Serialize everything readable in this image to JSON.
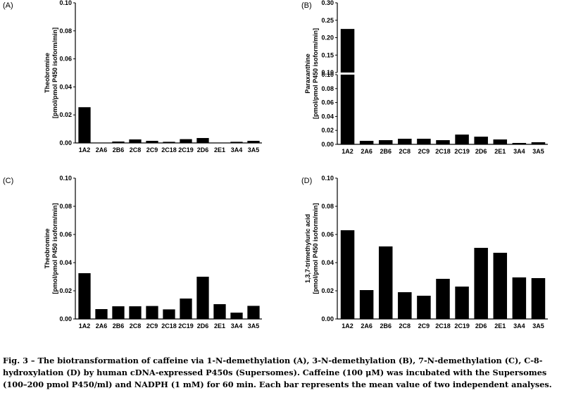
{
  "chart_data": [
    {
      "type": "bar",
      "panel": "(A)",
      "ylabel_lines": [
        "Theobromine",
        "[pmol/pmol P450 isoform/min]"
      ],
      "categories": [
        "1A2",
        "2A6",
        "2B6",
        "2C8",
        "2C9",
        "2C18",
        "2C19",
        "2D6",
        "2E1",
        "3A4",
        "3A5"
      ],
      "values": [
        0.0255,
        0.0,
        0.001,
        0.0025,
        0.0015,
        0.0008,
        0.0027,
        0.0035,
        0.0,
        0.0008,
        0.0015
      ],
      "ylim": [
        0,
        0.1
      ],
      "yticks": [
        "0.00",
        "0.02",
        "0.04",
        "0.06",
        "0.08",
        "0.10"
      ]
    },
    {
      "type": "bar",
      "panel": "(B)",
      "ylabel_lines": [
        "Paraxanthine",
        "[pmol/pmol P450 isoform/min]"
      ],
      "categories": [
        "1A2",
        "2A6",
        "2B6",
        "2C8",
        "2C9",
        "2C18",
        "2C19",
        "2D6",
        "2E1",
        "3A4",
        "3A5"
      ],
      "values": [
        0.225,
        0.005,
        0.006,
        0.008,
        0.008,
        0.006,
        0.014,
        0.011,
        0.007,
        0.002,
        0.003
      ],
      "ylim": [
        0,
        0.3
      ],
      "axis_break": [
        0.1,
        0.1
      ],
      "yticks_lower": [
        "0.00",
        "0.02",
        "0.04",
        "0.06",
        "0.08",
        "0.10"
      ],
      "yticks_upper": [
        "0.10",
        "0.15",
        "0.20",
        "0.25",
        "0.30"
      ]
    },
    {
      "type": "bar",
      "panel": "(C)",
      "ylabel_lines": [
        "Theobromine",
        "[pmol/pmol P450 isoform/min]"
      ],
      "categories": [
        "1A2",
        "2A6",
        "2B6",
        "2C8",
        "2C9",
        "2C18",
        "2C19",
        "2D6",
        "2E1",
        "3A4",
        "3A5"
      ],
      "values": [
        0.0325,
        0.007,
        0.009,
        0.009,
        0.0092,
        0.0068,
        0.0145,
        0.03,
        0.0105,
        0.0045,
        0.0093
      ],
      "ylim": [
        0,
        0.1
      ],
      "yticks": [
        "0.00",
        "0.02",
        "0.04",
        "0.06",
        "0.08",
        "0.10"
      ]
    },
    {
      "type": "bar",
      "panel": "(D)",
      "ylabel_lines": [
        "1,3,7-trimethyluric acid",
        "[pmol/pmol P450 isoform/min]"
      ],
      "categories": [
        "1A2",
        "2A6",
        "2B6",
        "2C8",
        "2C9",
        "2C18",
        "2C19",
        "2D6",
        "2E1",
        "3A4",
        "3A5"
      ],
      "values": [
        0.063,
        0.0205,
        0.0515,
        0.019,
        0.0165,
        0.0285,
        0.023,
        0.0505,
        0.047,
        0.0295,
        0.029
      ],
      "ylim": [
        0,
        0.1
      ],
      "yticks": [
        "0.00",
        "0.02",
        "0.04",
        "0.06",
        "0.08",
        "0.10"
      ]
    }
  ],
  "caption": {
    "lines": [
      "Fig. 3 – The biotransformation of caffeine via 1-N-demethylation (A), 3-N-demethylation (B), 7-N-demethylation (C), C-8-",
      "hydroxylation (D) by human cDNA-expressed P450s (Supersomes). Caffeine (100 μM) was incubated with the Supersomes",
      "(100–200 pmol P450/ml) and NADPH (1 mM) for 60 min. Each bar represents the mean value of two independent analyses."
    ]
  },
  "colors": {
    "bar": "#000000",
    "axis": "#000000",
    "background": "#ffffff"
  }
}
